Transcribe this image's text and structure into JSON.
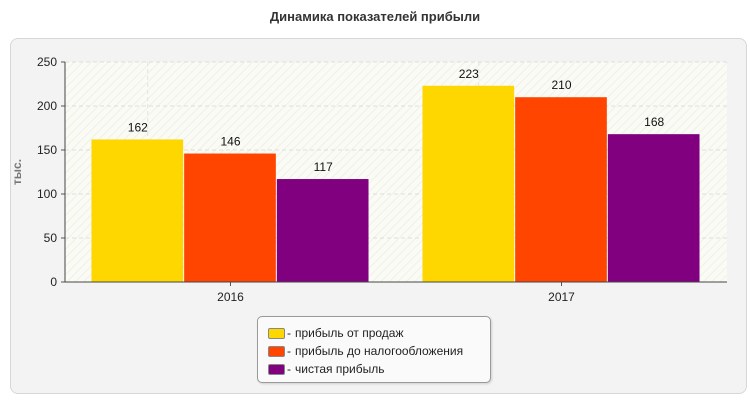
{
  "chart_data": {
    "type": "bar",
    "title": "Динамика показателей прибыли",
    "ylabel": "тыс.",
    "xlabel": "",
    "categories": [
      "2016",
      "2017"
    ],
    "ylim": [
      0,
      250
    ],
    "yticks": [
      0,
      50,
      100,
      150,
      200,
      250
    ],
    "grid": true,
    "legend_position": "bottom-center",
    "series": [
      {
        "name": "прибыль от продаж",
        "color": "#FFD700",
        "values": [
          162,
          223
        ]
      },
      {
        "name": "прибыль до налогообложения",
        "color": "#FF4500",
        "values": [
          146,
          210
        ]
      },
      {
        "name": "чистая прибыль",
        "color": "#800080",
        "values": [
          117,
          168
        ]
      }
    ]
  },
  "legend": {
    "prefix": "-",
    "items": [
      {
        "label": "прибыль от продаж",
        "color": "#FFD700"
      },
      {
        "label": "прибыль до налогообложения",
        "color": "#FF4500"
      },
      {
        "label": "чистая прибыль",
        "color": "#800080"
      }
    ]
  }
}
